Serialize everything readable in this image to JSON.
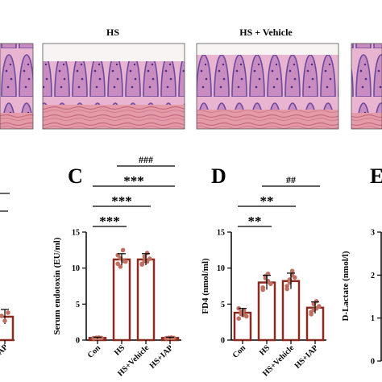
{
  "histology": {
    "titles": [
      "HS",
      "HS + Vehicle"
    ]
  },
  "colors": {
    "bar": "#8b2a1e",
    "point": "#c07060",
    "axis": "#000000",
    "tissue_pink": "#e2a3c2",
    "tissue_purple": "#6a4aa0"
  },
  "chart_data": [
    {
      "panel": "left-cropped",
      "type": "bar",
      "categories": [
        "",
        "IAP"
      ],
      "series": [
        {
          "values": [
            null,
            3
          ]
        }
      ]
    },
    {
      "panel": "C",
      "type": "bar",
      "ylabel": "Serum endotoxin (EU/ml)",
      "ylim": [
        0,
        15
      ],
      "yticks": [
        "0",
        "5",
        "10",
        "15"
      ],
      "categories": [
        "Con",
        "HS",
        "HS+Vehicle",
        "HS+IAP"
      ],
      "series": [
        {
          "values": [
            0.3,
            11.2,
            11.2,
            0.3
          ],
          "errors": [
            0.1,
            0.8,
            0.8,
            0.1
          ],
          "points": [
            [
              0.25,
              0.3,
              0.35,
              0.3,
              0.28,
              0.32,
              0.3
            ],
            [
              10.6,
              11.4,
              12.5,
              10.9,
              11.8,
              10.2,
              11.0
            ],
            [
              10.5,
              11.0,
              12.1,
              11.3,
              10.6,
              11.6,
              10.9
            ],
            [
              0.25,
              0.3,
              0.35,
              0.3,
              0.28,
              0.32,
              0.3
            ]
          ]
        }
      ],
      "significance": [
        {
          "from": 0,
          "to": 1,
          "label": "***"
        },
        {
          "from": 0,
          "to": 2,
          "label": "***"
        },
        {
          "from": 0,
          "to": 3,
          "label": "***"
        },
        {
          "from": 1,
          "to": 3,
          "label": "###"
        }
      ]
    },
    {
      "panel": "D",
      "type": "bar",
      "ylabel": "FD4 (nmol/ml)",
      "ylim": [
        0,
        15
      ],
      "yticks": [
        "0",
        "5",
        "10",
        "15"
      ],
      "categories": [
        "Con",
        "HS",
        "HS+Vehicle",
        "HS+IAP"
      ],
      "series": [
        {
          "values": [
            3.8,
            8.0,
            8.2,
            4.5
          ],
          "errors": [
            0.6,
            1.0,
            1.1,
            0.8
          ],
          "points": [
            [
              3.0,
              3.6,
              4.1,
              3.3,
              4.4,
              3.9,
              3.5
            ],
            [
              7.0,
              8.6,
              9.2,
              7.8,
              7.3,
              8.9,
              8.2
            ],
            [
              7.1,
              8.4,
              9.6,
              8.7,
              7.5,
              8.0,
              9.0
            ],
            [
              3.6,
              4.2,
              5.4,
              4.7,
              3.9,
              5.0,
              4.4
            ]
          ]
        }
      ],
      "significance": [
        {
          "from": 0,
          "to": 1,
          "label": "**"
        },
        {
          "from": 0,
          "to": 2,
          "label": "**"
        },
        {
          "from": 1,
          "to": 3,
          "label": "##"
        }
      ]
    },
    {
      "panel": "E",
      "type": "bar",
      "ylabel": "D-Lactate (nmol/l)",
      "ylim": [
        0,
        3
      ],
      "yticks": [
        "0",
        "1",
        "2",
        "3"
      ],
      "categories": [],
      "series": []
    }
  ]
}
